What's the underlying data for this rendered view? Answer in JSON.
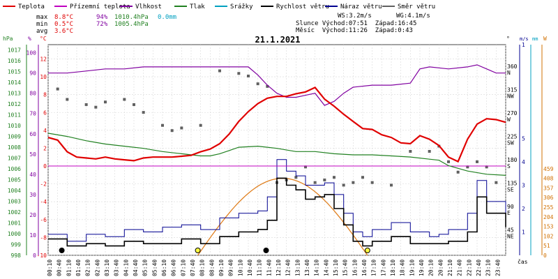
{
  "chart_data": {
    "type": "line",
    "title": "21.1.2021",
    "legend": [
      {
        "label": "Teplota",
        "color": "#e00000"
      },
      {
        "label": "Přízemní teplota",
        "color": "#c000c0"
      },
      {
        "label": "Vlhkost",
        "color": "#8000a0"
      },
      {
        "label": "Tlak",
        "color": "#208020"
      },
      {
        "label": "Srážky",
        "color": "#00a0c0"
      },
      {
        "label": "Rychlost větru",
        "color": "#000000"
      },
      {
        "label": "Náraz větru",
        "color": "#000090"
      },
      {
        "label": "Směr větru",
        "color": "#606060"
      }
    ],
    "stats": {
      "rows": [
        {
          "label": "max",
          "temp": "8.8°C",
          "hum": "94%",
          "press": "1010.4hPa",
          "rain": "0.0mm"
        },
        {
          "label": "min",
          "temp": "0.5°C",
          "hum": "72%",
          "press": "1005.4hPa",
          "rain": ""
        },
        {
          "label": "avg",
          "temp": "3.6°C",
          "hum": "",
          "press": "",
          "rain": ""
        }
      ],
      "ws": "WS:3.2m/s",
      "wg": "WG:4.1m/s",
      "sun": "Slunce Východ:07:51  Západ:16:45",
      "moon": "Měsíc  Východ:11:26  Západ:0:43"
    },
    "axes": {
      "hpa": {
        "unit": "hPa",
        "ticks": [
          "1017",
          "1016",
          "1015",
          "1014",
          "1013",
          "1012",
          "1011",
          "1010",
          "1009",
          "1008",
          "1007",
          "1006",
          "1005",
          "1004",
          "1003",
          "1002",
          "1001",
          "1000",
          "999",
          "998"
        ],
        "range": [
          998,
          1017.5
        ]
      },
      "pct": {
        "unit": "%",
        "ticks": [
          "100",
          "90",
          "80",
          "70",
          "60",
          "50",
          "40",
          "30",
          "20",
          "10",
          "0"
        ],
        "range": [
          0,
          104
        ]
      },
      "temp": {
        "unit": "°C",
        "ticks": [
          "12",
          "10",
          "8",
          "6",
          "4",
          "2",
          "0",
          "-2",
          "-4",
          "-6",
          "-8",
          "-10"
        ],
        "range": [
          -10,
          13.6
        ]
      },
      "dir": {
        "unit": "°",
        "ticks": [
          "360",
          "315",
          "270",
          "225",
          "180",
          "135",
          "90",
          "45"
        ],
        "cardinals": [
          "N",
          "NW",
          "W",
          "SW",
          "S",
          "SE",
          "E",
          "NE"
        ]
      },
      "ms": {
        "unit": "m/s",
        "ticks": [
          "1",
          "5",
          "4",
          "3",
          "2",
          "1"
        ]
      },
      "mm": {
        "unit": "mm",
        "ticks": [
          "1"
        ]
      },
      "wm2": {
        "unit": "W",
        "ticks": [
          "459",
          "408",
          "357",
          "306",
          "255",
          "204",
          "153",
          "102",
          "51",
          "0"
        ]
      },
      "time_label": "čas",
      "x_ticks": [
        "00:10",
        "00:40",
        "01:10",
        "01:40",
        "02:10",
        "02:40",
        "03:10",
        "03:40",
        "04:10",
        "04:40",
        "05:10",
        "05:40",
        "06:10",
        "06:40",
        "07:10",
        "07:40",
        "08:10",
        "08:40",
        "09:10",
        "09:40",
        "10:10",
        "10:40",
        "11:10",
        "11:40",
        "12:10",
        "12:40",
        "13:10",
        "13:40",
        "14:10",
        "14:40",
        "15:10",
        "15:40",
        "16:10",
        "16:40",
        "17:10",
        "17:40",
        "18:10",
        "18:40",
        "19:10",
        "19:40",
        "20:10",
        "20:40",
        "21:10",
        "21:40",
        "22:10",
        "22:40",
        "23:10",
        "23:40"
      ]
    },
    "x_range_hours": [
      0,
      24
    ],
    "series": [
      {
        "name": "Teplota",
        "unit": "°C",
        "color": "#e00000",
        "x": [
          0,
          0.5,
          1,
          1.5,
          2,
          2.5,
          3,
          3.5,
          4,
          4.5,
          5,
          5.5,
          6,
          6.5,
          7,
          7.5,
          8,
          8.5,
          9,
          9.5,
          10,
          10.5,
          11,
          11.5,
          12,
          12.5,
          13,
          13.5,
          14,
          14.5,
          15,
          15.5,
          16,
          16.5,
          17,
          17.5,
          18,
          18.5,
          19,
          19.5,
          20,
          20.5,
          21,
          21.5,
          22,
          22.5,
          23,
          23.5,
          24
        ],
        "y": [
          3.2,
          2.9,
          1.6,
          1.0,
          0.9,
          0.8,
          1.0,
          0.8,
          0.7,
          0.6,
          0.9,
          1.0,
          1.0,
          1.0,
          1.1,
          1.2,
          1.6,
          1.9,
          2.5,
          3.6,
          5.0,
          6.1,
          7.0,
          7.6,
          7.8,
          7.8,
          8.1,
          8.3,
          8.8,
          7.5,
          6.7,
          5.8,
          5.0,
          4.2,
          4.1,
          3.5,
          3.2,
          2.6,
          2.5,
          3.4,
          3.0,
          2.3,
          1.0,
          0.5,
          3.0,
          4.7,
          5.3,
          5.2,
          4.9
        ]
      },
      {
        "name": "Vlhkost",
        "unit": "%",
        "color": "#8000a0",
        "x": [
          0,
          1,
          2,
          3,
          4,
          5,
          6,
          7,
          8,
          9,
          10,
          10.5,
          11,
          11.5,
          12,
          12.5,
          13,
          13.5,
          14,
          14.5,
          15,
          15.5,
          16,
          17,
          18,
          19,
          19.5,
          20,
          21,
          22,
          22.5,
          23,
          23.5,
          24
        ],
        "y": [
          90,
          90,
          91,
          92,
          92,
          93,
          93,
          93,
          93,
          93,
          93,
          93,
          89,
          84,
          80,
          78,
          78,
          79,
          80,
          74,
          76,
          80,
          83,
          84,
          84,
          85,
          92,
          93,
          92,
          93,
          94,
          92,
          90,
          90
        ]
      },
      {
        "name": "Tlak",
        "unit": "hPa",
        "color": "#208020",
        "x": [
          0,
          1,
          2,
          3,
          4,
          5,
          6,
          7,
          8,
          8.5,
          9,
          9.5,
          10,
          11,
          12,
          13,
          14,
          15,
          16,
          17,
          18,
          19,
          20,
          20.5,
          21,
          22,
          23,
          24
        ],
        "y": [
          1009.3,
          1009.0,
          1008.6,
          1008.3,
          1008.1,
          1007.9,
          1007.6,
          1007.4,
          1007.2,
          1007.2,
          1007.4,
          1007.7,
          1008.0,
          1008.1,
          1007.9,
          1007.6,
          1007.6,
          1007.4,
          1007.3,
          1007.3,
          1007.2,
          1007.1,
          1006.9,
          1006.8,
          1006.3,
          1005.8,
          1005.5,
          1005.4
        ]
      },
      {
        "name": "Přízemní teplota",
        "unit": "°C",
        "color": "#c000c0",
        "x": [
          0,
          24
        ],
        "y": [
          0,
          0
        ]
      },
      {
        "name": "Rychlost větru",
        "unit": "m/s",
        "color": "#000000",
        "x": [
          0,
          1,
          2,
          3,
          4,
          5,
          6,
          7,
          8,
          9,
          10,
          11,
          11.5,
          12,
          12.5,
          13,
          13.5,
          14,
          14.5,
          15,
          15.5,
          16,
          16.5,
          17,
          18,
          19,
          20,
          20.5,
          21,
          22,
          22.5,
          23,
          24
        ],
        "y": [
          0.7,
          0.4,
          0.5,
          0.4,
          0.6,
          0.5,
          0.5,
          0.7,
          0.5,
          0.8,
          1.0,
          1.1,
          1.5,
          3.3,
          3.0,
          2.8,
          2.4,
          2.5,
          2.6,
          2.0,
          1.3,
          0.6,
          0.4,
          0.6,
          0.8,
          0.5,
          0.5,
          0.5,
          0.6,
          1.0,
          2.5,
          1.8,
          1.2
        ]
      },
      {
        "name": "Náraz větru",
        "unit": "m/s",
        "color": "#000090",
        "x": [
          0,
          1,
          2,
          3,
          4,
          5,
          6,
          7,
          8,
          9,
          10,
          11,
          11.5,
          12,
          12.5,
          13,
          13.5,
          14,
          14.5,
          15,
          15.5,
          16,
          16.5,
          17,
          18,
          19,
          20,
          20.5,
          21,
          22,
          22.5,
          23,
          24
        ],
        "y": [
          0.9,
          0.6,
          0.9,
          0.8,
          1.1,
          1.0,
          1.2,
          1.3,
          1.1,
          1.6,
          1.8,
          1.9,
          2.5,
          4.1,
          3.6,
          3.4,
          3.0,
          3.0,
          3.1,
          2.6,
          1.8,
          1.0,
          0.8,
          1.1,
          1.4,
          1.0,
          0.8,
          0.9,
          1.1,
          1.8,
          3.2,
          2.3,
          1.7
        ]
      },
      {
        "name": "Směr větru",
        "unit": "°",
        "color": "#606060",
        "kind": "scatter",
        "x": [
          0.5,
          1,
          2,
          2.5,
          3,
          4,
          4.5,
          5,
          6,
          6.5,
          7,
          8,
          9,
          10,
          10.5,
          11,
          11.5,
          12,
          12.5,
          13,
          13.5,
          14,
          14.5,
          15,
          15.5,
          16,
          16.5,
          17,
          18,
          19,
          20,
          20.5,
          21,
          21.5,
          22,
          22.5,
          23,
          23.5
        ],
        "y": [
          320,
          300,
          290,
          285,
          295,
          300,
          290,
          275,
          250,
          240,
          245,
          250,
          355,
          350,
          345,
          330,
          325,
          140,
          145,
          150,
          170,
          140,
          145,
          150,
          135,
          140,
          150,
          140,
          135,
          200,
          200,
          210,
          180,
          160,
          170,
          180,
          170,
          140
        ]
      }
    ],
    "markers": [
      {
        "label": "Slunce",
        "time": "07:51",
        "kind": "sunrise"
      },
      {
        "label": "Slunce",
        "time": "16:45",
        "kind": "sunset"
      },
      {
        "label": "Měsíc",
        "time": "11:26",
        "kind": "moonrise"
      },
      {
        "label": "Měsíc",
        "time": "0:43",
        "kind": "moonset"
      }
    ],
    "radiation": {
      "unit": "W",
      "peak": 408,
      "start_hour": 7.85,
      "end_hour": 16.75
    },
    "grid": true
  }
}
